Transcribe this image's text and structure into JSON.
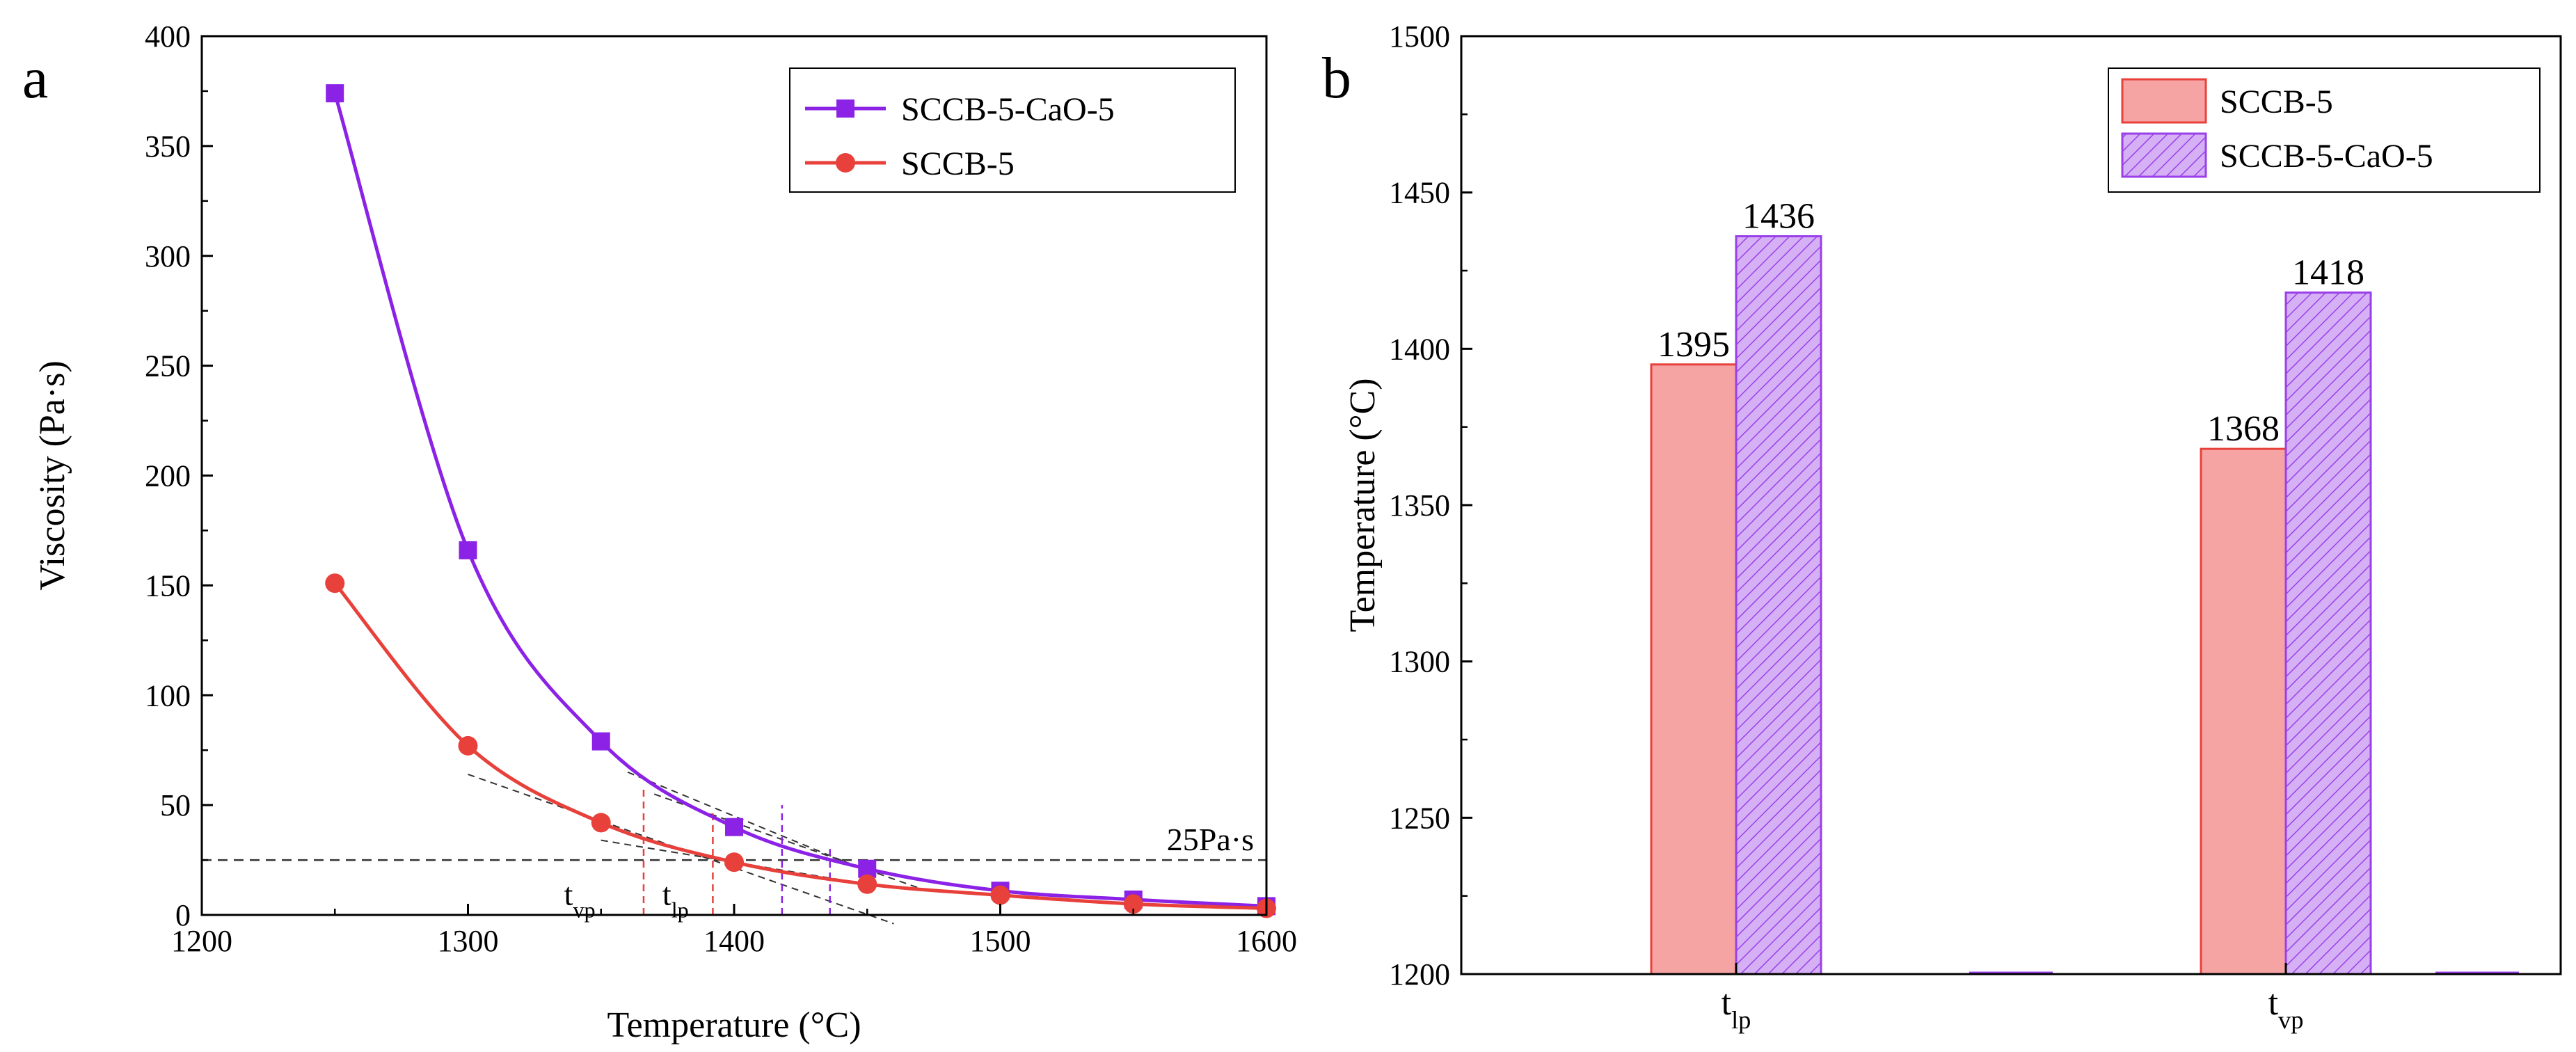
{
  "chart_data": [
    {
      "panel_label": "a",
      "type": "line",
      "xlabel": "Temperature (°C)",
      "ylabel": "Viscosity (Pa·s)",
      "xlim": [
        1200,
        1600
      ],
      "ylim": [
        0,
        400
      ],
      "xticks": [
        1200,
        1300,
        1400,
        1500,
        1600
      ],
      "yticks": [
        0,
        50,
        100,
        150,
        200,
        250,
        300,
        350,
        400
      ],
      "legend_position": "top-right",
      "series": [
        {
          "name": "SCCB-5-CaO-5",
          "color": "#8B22E6",
          "marker": "square",
          "x": [
            1250,
            1300,
            1350,
            1400,
            1450,
            1500,
            1550,
            1600
          ],
          "values": [
            374,
            166,
            79,
            40,
            21,
            11,
            7,
            4
          ]
        },
        {
          "name": "SCCB-5",
          "color": "#E8403A",
          "marker": "circle",
          "x": [
            1250,
            1300,
            1350,
            1400,
            1450,
            1500,
            1550,
            1600
          ],
          "values": [
            151,
            77,
            42,
            24,
            14,
            9,
            5,
            3
          ]
        }
      ],
      "annotations": {
        "threshold_value": 25,
        "threshold_label": "25Pa·s",
        "tvp_main": "t",
        "tvp_sub": "vp",
        "tlp_main": "t",
        "tlp_sub": "lp",
        "tangents": [
          {
            "x": [
              1300,
              1460
            ],
            "values": [
              64,
              -4
            ]
          },
          {
            "x": [
              1350,
              1440
            ],
            "values": [
              34,
              16
            ]
          },
          {
            "x": [
              1360,
              1450
            ],
            "values": [
              65,
              20
            ]
          },
          {
            "x": [
              1370,
              1470
            ],
            "values": [
              55,
              12
            ]
          }
        ],
        "vlines": [
          {
            "x": 1366,
            "values": [
              0,
              58
            ],
            "color": "#E8403A"
          },
          {
            "x": 1392,
            "values": [
              0,
              48
            ],
            "color": "#E8403A"
          },
          {
            "x": 1418,
            "values": [
              0,
              50
            ],
            "color": "#8B22E6"
          },
          {
            "x": 1436,
            "values": [
              0,
              30
            ],
            "color": "#8B22E6"
          }
        ]
      }
    },
    {
      "panel_label": "b",
      "type": "bar",
      "ylabel": "Temperature (°C)",
      "ylim": [
        1200,
        1500
      ],
      "yticks": [
        1200,
        1250,
        1300,
        1350,
        1400,
        1450,
        1500
      ],
      "categories": [
        {
          "main": "t",
          "sub": "lp"
        },
        {
          "main": "t",
          "sub": "vp"
        }
      ],
      "legend_position": "top-right",
      "series": [
        {
          "name": "SCCB-5",
          "color": "#F5A3A3",
          "edge": "#E8403A",
          "pattern": "solid",
          "values": [
            1395,
            1368
          ]
        },
        {
          "name": "SCCB-5-CaO-5",
          "color": "#D6B0F5",
          "edge": "#9A40E8",
          "pattern": "hatch",
          "values": [
            1436,
            1418
          ]
        }
      ],
      "data_labels": [
        "1395",
        "1368",
        "1436",
        "1418"
      ]
    }
  ]
}
